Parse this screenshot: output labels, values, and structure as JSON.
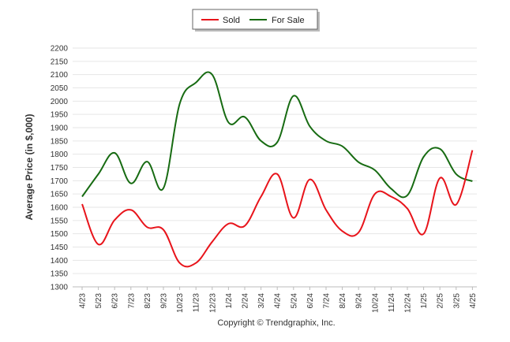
{
  "chart_data": {
    "type": "line",
    "ylabel": "Average Price (in $,000)",
    "xlabel": "",
    "ylim": [
      1300,
      2200
    ],
    "yticks": [
      1300,
      1350,
      1400,
      1450,
      1500,
      1550,
      1600,
      1650,
      1700,
      1750,
      1800,
      1850,
      1900,
      1950,
      2000,
      2050,
      2100,
      2150,
      2200
    ],
    "grid": true,
    "legend": "top-center",
    "categories": [
      "4/23",
      "5/23",
      "6/23",
      "7/23",
      "8/23",
      "9/23",
      "10/23",
      "11/23",
      "12/23",
      "1/24",
      "2/24",
      "3/24",
      "4/24",
      "5/24",
      "6/24",
      "7/24",
      "8/24",
      "9/24",
      "10/24",
      "11/24",
      "12/24",
      "1/25",
      "2/25",
      "3/25",
      "4/25"
    ],
    "series": [
      {
        "name": "Sold",
        "color": "#e8141b",
        "values": [
          1612,
          1460,
          1552,
          1590,
          1525,
          1515,
          1390,
          1390,
          1470,
          1538,
          1530,
          1640,
          1725,
          1560,
          1705,
          1590,
          1510,
          1505,
          1650,
          1640,
          1595,
          1500,
          1710,
          1610,
          1815
        ]
      },
      {
        "name": "For Sale",
        "color": "#176b12",
        "values": [
          1640,
          1725,
          1805,
          1690,
          1772,
          1672,
          1990,
          2070,
          2100,
          1920,
          1940,
          1850,
          1845,
          2020,
          1905,
          1850,
          1830,
          1770,
          1740,
          1670,
          1645,
          1790,
          1820,
          1725,
          1698
        ]
      }
    ]
  },
  "footer": {
    "copyright": "Copyright © Trendgraphix, Inc."
  }
}
